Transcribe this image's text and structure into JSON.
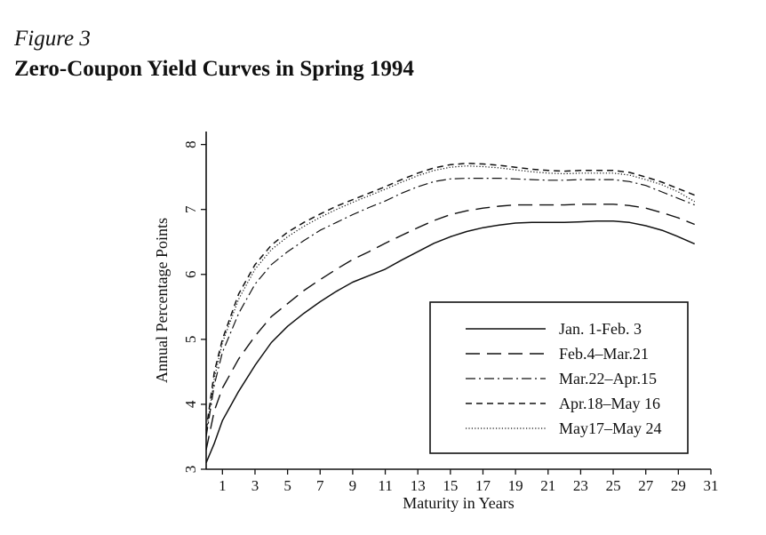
{
  "figure": {
    "label": "Figure 3",
    "title": "Zero-Coupon Yield Curves in Spring 1994"
  },
  "chart_data": {
    "type": "line",
    "xlabel": "Maturity in Years",
    "ylabel": "Annual Percentage Points",
    "xlim": [
      0,
      31
    ],
    "ylim": [
      3,
      8.2
    ],
    "xticks": [
      1,
      3,
      5,
      7,
      9,
      11,
      13,
      15,
      17,
      19,
      21,
      23,
      25,
      27,
      29,
      31
    ],
    "yticks": [
      3,
      4,
      5,
      6,
      7,
      8
    ],
    "grid": false,
    "legend_position": "bottom-right",
    "x": [
      0,
      0.5,
      1,
      2,
      3,
      4,
      5,
      6,
      7,
      8,
      9,
      10,
      11,
      12,
      13,
      14,
      15,
      16,
      17,
      18,
      19,
      20,
      21,
      22,
      23,
      24,
      25,
      26,
      27,
      28,
      29,
      30
    ],
    "series": [
      {
        "name": "Jan. 1-Feb. 3",
        "style": "solid",
        "values": [
          3.1,
          3.4,
          3.75,
          4.2,
          4.6,
          4.95,
          5.2,
          5.4,
          5.58,
          5.74,
          5.88,
          5.98,
          6.08,
          6.22,
          6.35,
          6.48,
          6.58,
          6.66,
          6.72,
          6.76,
          6.79,
          6.8,
          6.8,
          6.8,
          6.81,
          6.82,
          6.82,
          6.8,
          6.75,
          6.68,
          6.58,
          6.47
        ]
      },
      {
        "name": "Feb.4–Mar.21",
        "style": "long-dash",
        "values": [
          3.3,
          3.9,
          4.25,
          4.7,
          5.05,
          5.35,
          5.55,
          5.75,
          5.92,
          6.08,
          6.23,
          6.35,
          6.48,
          6.6,
          6.72,
          6.83,
          6.92,
          6.98,
          7.02,
          7.05,
          7.07,
          7.07,
          7.07,
          7.07,
          7.08,
          7.08,
          7.08,
          7.06,
          7.02,
          6.95,
          6.87,
          6.77
        ]
      },
      {
        "name": "Mar.22–Apr.15",
        "style": "dash-dot",
        "values": [
          3.5,
          4.3,
          4.8,
          5.4,
          5.85,
          6.15,
          6.35,
          6.52,
          6.68,
          6.8,
          6.92,
          7.03,
          7.13,
          7.25,
          7.35,
          7.43,
          7.47,
          7.48,
          7.48,
          7.48,
          7.47,
          7.46,
          7.45,
          7.45,
          7.46,
          7.46,
          7.46,
          7.43,
          7.37,
          7.27,
          7.17,
          7.07
        ]
      },
      {
        "name": "Apr.18–May 16",
        "style": "short-dash",
        "values": [
          3.6,
          4.5,
          5.0,
          5.7,
          6.15,
          6.45,
          6.65,
          6.8,
          6.93,
          7.05,
          7.15,
          7.25,
          7.35,
          7.46,
          7.56,
          7.64,
          7.69,
          7.71,
          7.7,
          7.68,
          7.65,
          7.62,
          7.6,
          7.59,
          7.6,
          7.6,
          7.6,
          7.57,
          7.5,
          7.42,
          7.32,
          7.22
        ]
      },
      {
        "name": "May17–May 24",
        "style": "dotted",
        "values": [
          3.55,
          4.4,
          4.95,
          5.62,
          6.08,
          6.38,
          6.58,
          6.74,
          6.88,
          7.0,
          7.11,
          7.21,
          7.31,
          7.42,
          7.52,
          7.6,
          7.65,
          7.67,
          7.66,
          7.64,
          7.61,
          7.58,
          7.56,
          7.55,
          7.56,
          7.56,
          7.56,
          7.53,
          7.46,
          7.38,
          7.27,
          7.12
        ]
      }
    ]
  }
}
